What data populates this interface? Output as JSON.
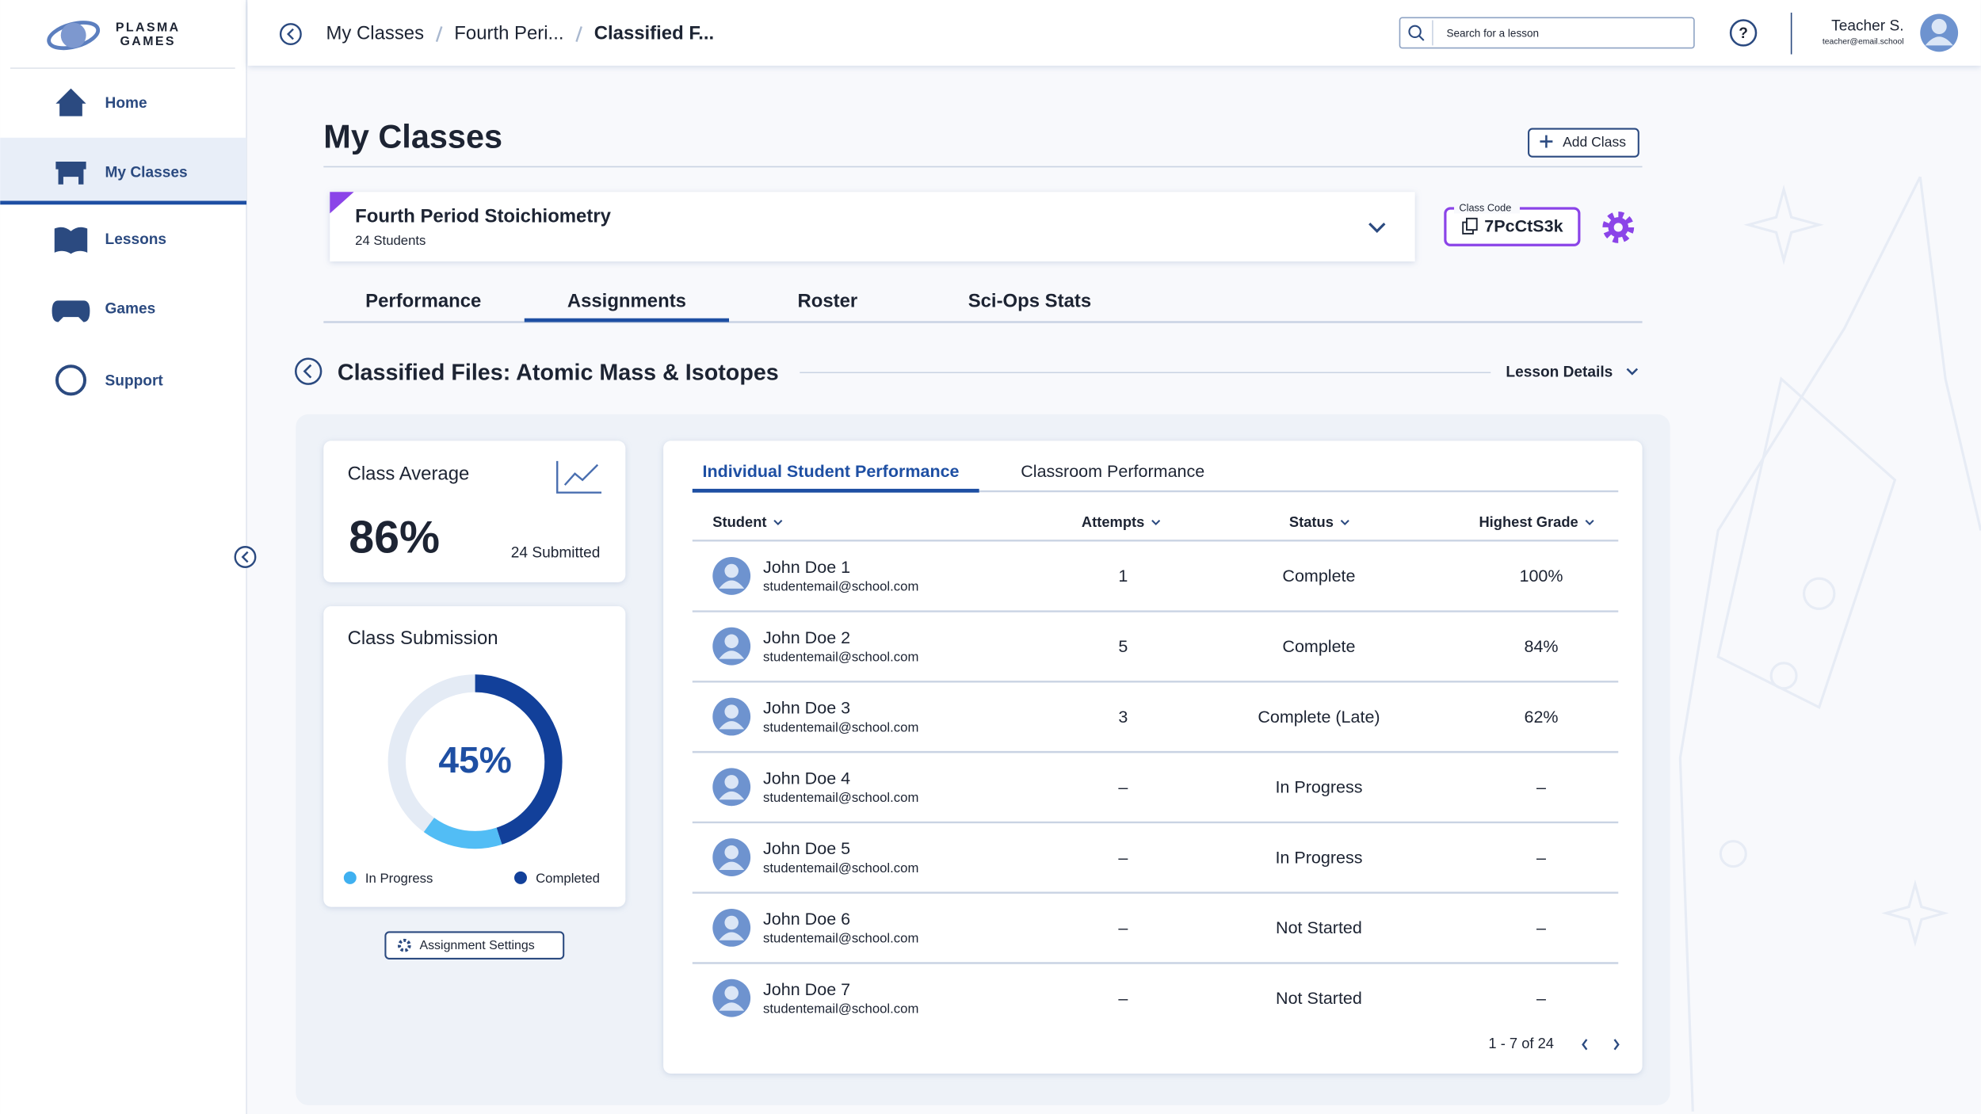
{
  "brand": {
    "line1": "PLASMA",
    "line2": "GAMES"
  },
  "breadcrumb": [
    "My Classes",
    "Fourth Peri...",
    "Classified F..."
  ],
  "search_placeholder": "Search for a lesson",
  "user": {
    "name": "Teacher S.",
    "email": "teacher@email.school"
  },
  "nav": [
    "Home",
    "My Classes",
    "Lessons",
    "Games",
    "Support"
  ],
  "page_title": "My Classes",
  "add_class": "Add Class",
  "class": {
    "name": "Fourth Period Stoichiometry",
    "students": "24 Students",
    "code_label": "Class Code",
    "code": "7PcCtS3k"
  },
  "tabs": [
    "Performance",
    "Assignments",
    "Roster",
    "Sci-Ops Stats"
  ],
  "lesson": {
    "title": "Classified Files: Atomic Mass & Isotopes",
    "details": "Lesson Details"
  },
  "average": {
    "title": "Class Average",
    "value": "86%",
    "submitted": "24 Submitted"
  },
  "submission": {
    "title": "Class Submission",
    "percent": {
      "value": 45,
      "label": "45%"
    },
    "legend": [
      "In Progress",
      "Completed"
    ]
  },
  "assignment_settings": "Assignment Settings",
  "table": {
    "tabs": [
      "Individual Student Performance",
      "Classroom Performance"
    ],
    "headers": [
      "Student",
      "Attempts",
      "Status",
      "Highest Grade"
    ],
    "rows": [
      [
        "John Doe 1",
        "studentemail@school.com",
        "1",
        "Complete",
        "100%"
      ],
      [
        "John Doe 2",
        "studentemail@school.com",
        "5",
        "Complete",
        "84%"
      ],
      [
        "John Doe 3",
        "studentemail@school.com",
        "3",
        "Complete (Late)",
        "62%"
      ],
      [
        "John Doe 4",
        "studentemail@school.com",
        "–",
        "In Progress",
        "–"
      ],
      [
        "John Doe 5",
        "studentemail@school.com",
        "–",
        "In Progress",
        "–"
      ],
      [
        "John Doe 6",
        "studentemail@school.com",
        "–",
        "Not Started",
        "–"
      ],
      [
        "John Doe 7",
        "studentemail@school.com",
        "–",
        "Not Started",
        "–"
      ]
    ],
    "pagination": "1 - 7 of 24"
  }
}
